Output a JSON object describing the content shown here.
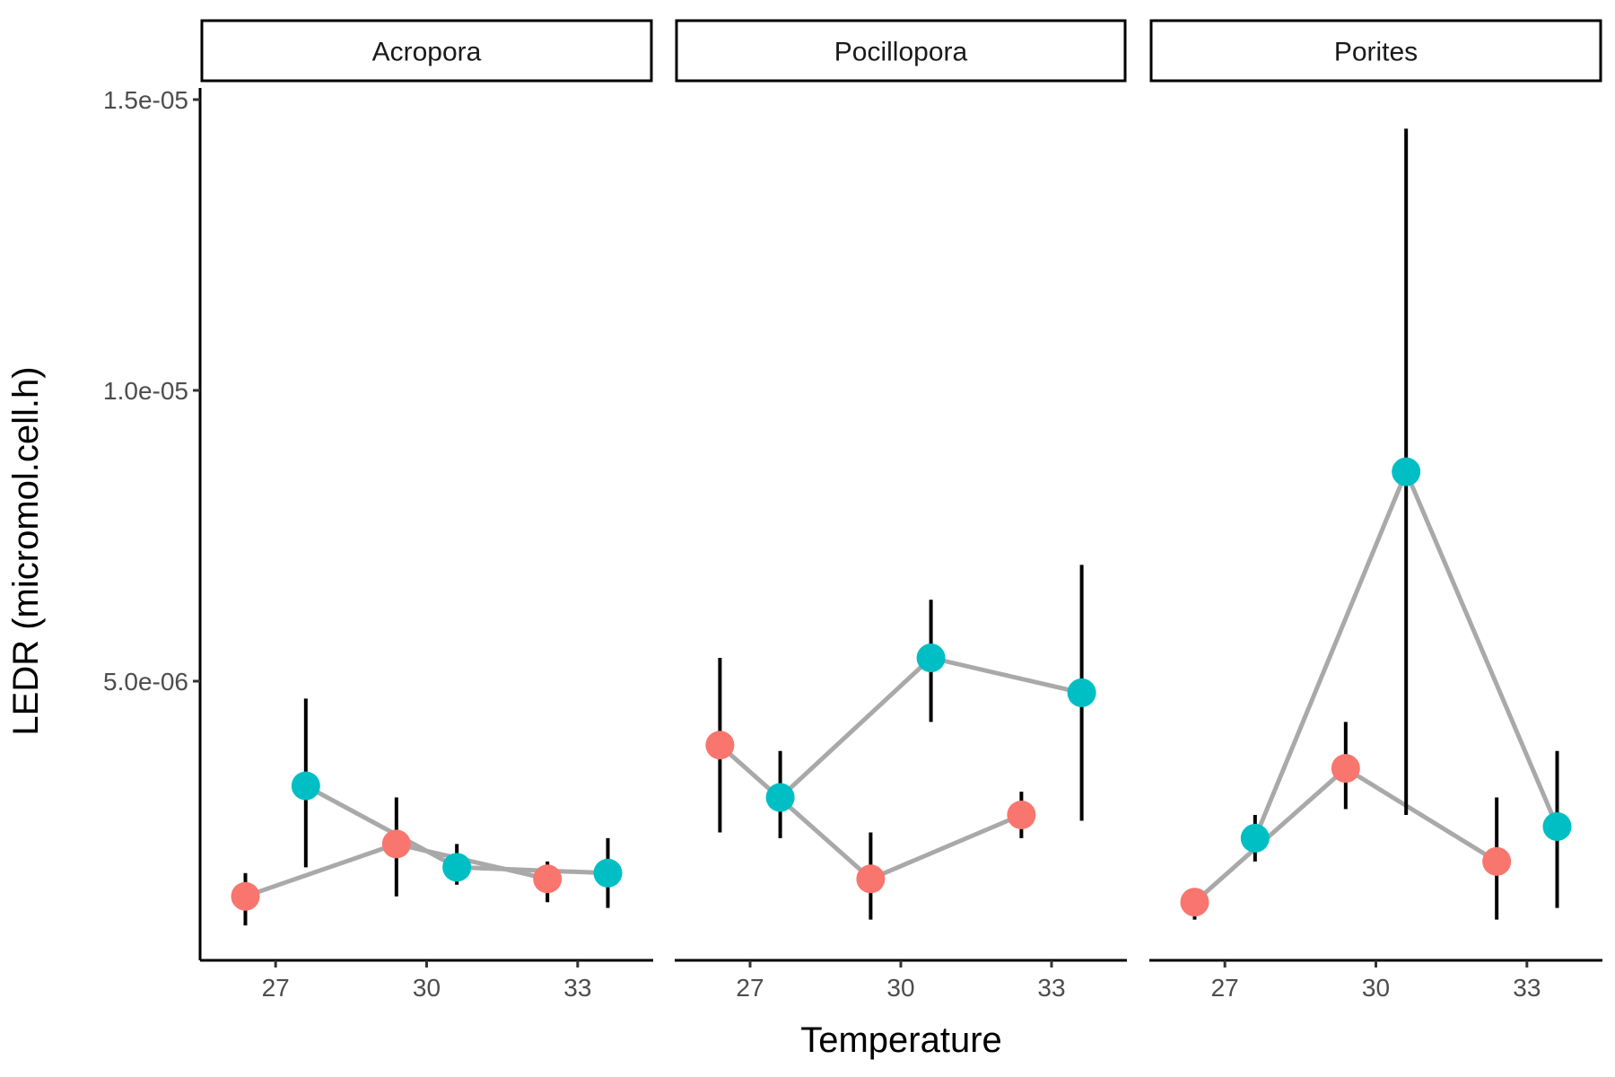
{
  "chart_data": {
    "type": "scatter",
    "xlabel": "Temperature",
    "ylabel": "LEDR (micromol.cell.h)",
    "x_ticks": [
      "27",
      "30",
      "33"
    ],
    "y_ticks": [
      "5.0e-06",
      "1.0e-05",
      "1.5e-05"
    ],
    "y_tick_values": [
      5e-06,
      1e-05,
      1.5e-05
    ],
    "ylim": [
      2e-07,
      1.52e-05
    ],
    "legend": "none",
    "colors": {
      "red": "#F8766D",
      "teal": "#00BFC4",
      "line": "#A9A9A9",
      "error": "#000000"
    },
    "panels": [
      {
        "name": "Acropora",
        "series": [
          {
            "color": "red",
            "points": [
              {
                "x": 27,
                "y": 1.3e-06,
                "ymin": 8e-07,
                "ymax": 1.7e-06
              },
              {
                "x": 30,
                "y": 2.2e-06,
                "ymin": 1.3e-06,
                "ymax": 3e-06
              },
              {
                "x": 33,
                "y": 1.6e-06,
                "ymin": 1.2e-06,
                "ymax": 1.9e-06
              }
            ]
          },
          {
            "color": "teal",
            "points": [
              {
                "x": 27,
                "y": 3.2e-06,
                "ymin": 1.8e-06,
                "ymax": 4.7e-06
              },
              {
                "x": 30,
                "y": 1.8e-06,
                "ymin": 1.5e-06,
                "ymax": 2.2e-06
              },
              {
                "x": 33,
                "y": 1.7e-06,
                "ymin": 1.1e-06,
                "ymax": 2.3e-06
              }
            ]
          }
        ]
      },
      {
        "name": "Pocillopora",
        "series": [
          {
            "color": "red",
            "points": [
              {
                "x": 27,
                "y": 3.9e-06,
                "ymin": 2.4e-06,
                "ymax": 5.4e-06
              },
              {
                "x": 30,
                "y": 1.6e-06,
                "ymin": 9e-07,
                "ymax": 2.4e-06
              },
              {
                "x": 33,
                "y": 2.7e-06,
                "ymin": 2.3e-06,
                "ymax": 3.1e-06
              }
            ]
          },
          {
            "color": "teal",
            "points": [
              {
                "x": 27,
                "y": 3e-06,
                "ymin": 2.3e-06,
                "ymax": 3.8e-06
              },
              {
                "x": 30,
                "y": 5.4e-06,
                "ymin": 4.3e-06,
                "ymax": 6.4e-06
              },
              {
                "x": 33,
                "y": 4.8e-06,
                "ymin": 2.6e-06,
                "ymax": 7e-06
              }
            ]
          }
        ]
      },
      {
        "name": "Porites",
        "series": [
          {
            "color": "red",
            "points": [
              {
                "x": 27,
                "y": 1.2e-06,
                "ymin": 9e-07,
                "ymax": 1.4e-06
              },
              {
                "x": 30,
                "y": 3.5e-06,
                "ymin": 2.8e-06,
                "ymax": 4.3e-06
              },
              {
                "x": 33,
                "y": 1.9e-06,
                "ymin": 9e-07,
                "ymax": 3e-06
              }
            ]
          },
          {
            "color": "teal",
            "points": [
              {
                "x": 27,
                "y": 2.3e-06,
                "ymin": 1.9e-06,
                "ymax": 2.7e-06
              },
              {
                "x": 30,
                "y": 8.6e-06,
                "ymin": 2.7e-06,
                "ymax": 1.45e-05
              },
              {
                "x": 33,
                "y": 2.5e-06,
                "ymin": 1.1e-06,
                "ymax": 3.8e-06
              }
            ]
          }
        ]
      }
    ]
  }
}
